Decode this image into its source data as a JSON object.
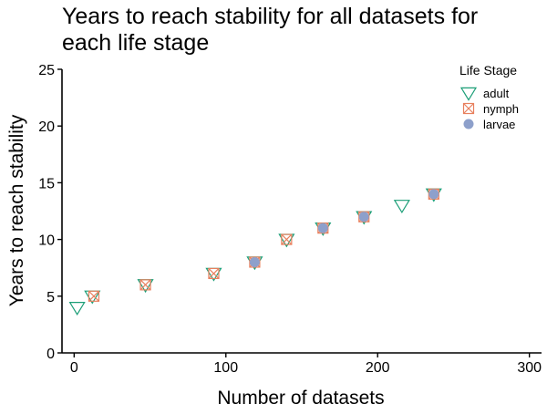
{
  "chart_data": {
    "type": "scatter",
    "title": "Years to reach stability for all datasets for each life stage",
    "title_lines": [
      "Years to reach stability for all datasets for",
      "each life stage"
    ],
    "xlabel": "Number of datasets",
    "ylabel": "Years to reach stability",
    "xlim": [
      -8,
      308
    ],
    "ylim": [
      0,
      25
    ],
    "xticks": [
      0,
      100,
      200,
      300
    ],
    "yticks": [
      0,
      5,
      10,
      15,
      20,
      25
    ],
    "grid": false,
    "legend": {
      "title": "Life Stage",
      "placement": "top-right"
    },
    "series": [
      {
        "name": "adult",
        "marker": "triangle-down-open",
        "color": "#1b9e77",
        "x": [
          2,
          12,
          47,
          92,
          119,
          140,
          164,
          191,
          216,
          237
        ],
        "y": [
          4,
          5,
          6,
          7,
          8,
          10,
          11,
          12,
          13,
          14
        ]
      },
      {
        "name": "nymph",
        "marker": "square-x-open",
        "color": "#e8805e",
        "x": [
          13,
          47,
          92,
          119,
          140,
          164,
          191,
          237
        ],
        "y": [
          5,
          6,
          7,
          8,
          10,
          11,
          12,
          14
        ]
      },
      {
        "name": "larvae",
        "marker": "circle-filled",
        "color": "#8da0cb",
        "x": [
          119,
          164,
          191,
          237
        ],
        "y": [
          8,
          11,
          12,
          14
        ]
      }
    ]
  }
}
